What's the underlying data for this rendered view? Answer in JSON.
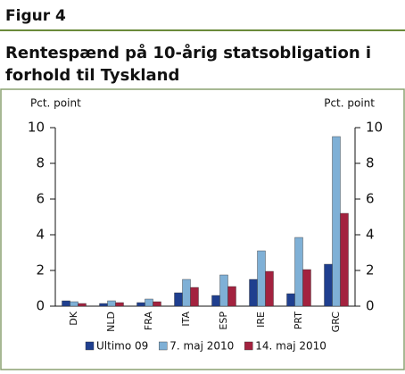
{
  "header": "Figur 4",
  "chart_data": {
    "type": "bar",
    "title": "Rentespænd på 10-årig statsobligation i forhold til Tyskland",
    "y_label": "Pct. point",
    "y2_label": "Pct. point",
    "categories": [
      "DK",
      "NLD",
      "FRA",
      "ITA",
      "ESP",
      "IRE",
      "PRT",
      "GRC"
    ],
    "series": [
      {
        "name": "Ultimo 09",
        "color": "#1f3f8f",
        "values": [
          0.3,
          0.15,
          0.2,
          0.75,
          0.6,
          1.5,
          0.7,
          2.35
        ]
      },
      {
        "name": "7. maj 2010",
        "color": "#7fb0d6",
        "values": [
          0.25,
          0.3,
          0.4,
          1.5,
          1.75,
          3.1,
          3.85,
          9.5
        ]
      },
      {
        "name": "14. maj 2010",
        "color": "#a3223f",
        "values": [
          0.15,
          0.2,
          0.25,
          1.05,
          1.1,
          1.95,
          2.05,
          5.2
        ]
      }
    ],
    "ylim": [
      0,
      10
    ],
    "yticks": [
      0,
      2,
      4,
      6,
      8,
      10
    ],
    "y2lim": [
      0,
      10
    ],
    "y2ticks": [
      0,
      2,
      4,
      6,
      8,
      10
    ],
    "grid": false,
    "legend": "bottom"
  }
}
